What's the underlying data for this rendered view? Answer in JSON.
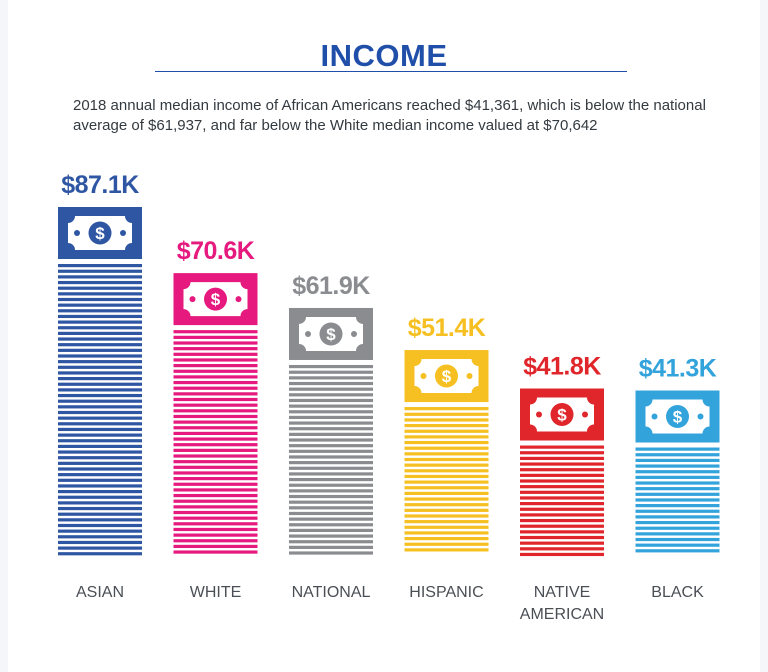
{
  "title": "INCOME",
  "subtitle": "2018 annual median income of African Americans reached $41,361, which is below the national average of $61,937, and far below the White median income valued at $70,642",
  "chart_data": {
    "type": "bar",
    "title": "INCOME",
    "categories": [
      "ASIAN",
      "WHITE",
      "NATIONAL",
      "HISPANIC",
      "NATIVE AMERICAN",
      "BLACK"
    ],
    "category_lines": [
      [
        "ASIAN"
      ],
      [
        "WHITE"
      ],
      [
        "NATIONAL"
      ],
      [
        "HISPANIC"
      ],
      [
        "NATIVE",
        "AMERICAN"
      ],
      [
        "BLACK"
      ]
    ],
    "values": [
      87.1,
      70.6,
      61.9,
      51.4,
      41.8,
      41.3
    ],
    "value_labels": [
      "$87.1K",
      "$70.6K",
      "$61.9K",
      "$51.4K",
      "$41.8K",
      "$41.3K"
    ],
    "colors": [
      "#2f56a3",
      "#e5197e",
      "#8a8c90",
      "#f6c022",
      "#e0262b",
      "#33a3dc"
    ],
    "unit": "thousand USD",
    "bar_style": "striped-with-dollar-bill-icon",
    "icon": "dollar-bill-icon"
  }
}
